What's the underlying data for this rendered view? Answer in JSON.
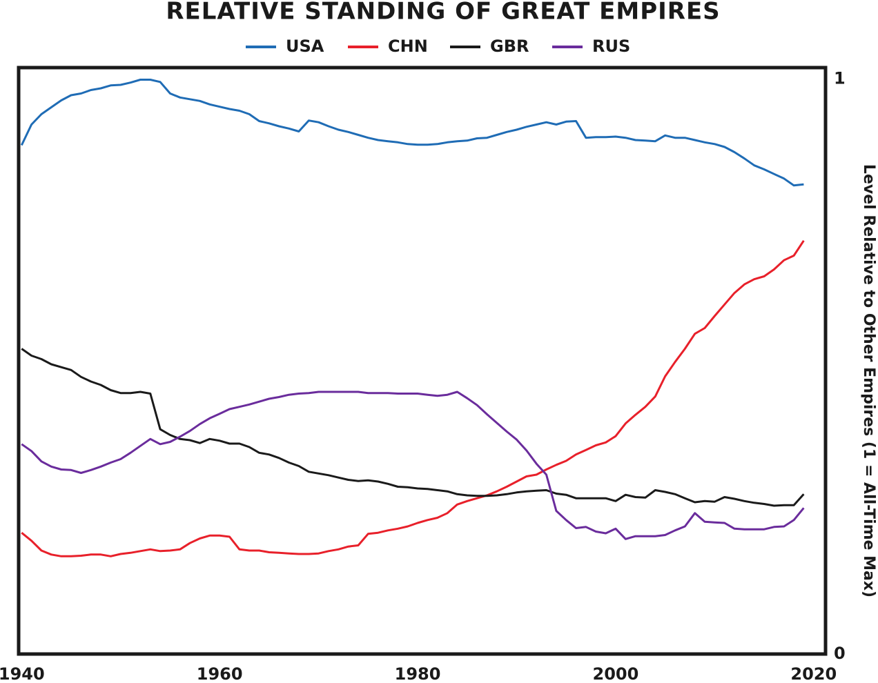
{
  "chart_data": {
    "type": "line",
    "title": "RELATIVE STANDING OF GREAT EMPIRES",
    "y_label": "Level Relative to Other Empires (1 = All-Time Max)",
    "x": [
      1940,
      1941,
      1942,
      1943,
      1944,
      1945,
      1946,
      1947,
      1948,
      1949,
      1950,
      1951,
      1952,
      1953,
      1954,
      1955,
      1956,
      1957,
      1958,
      1959,
      1960,
      1961,
      1962,
      1963,
      1964,
      1965,
      1966,
      1967,
      1968,
      1969,
      1970,
      1971,
      1972,
      1973,
      1974,
      1975,
      1976,
      1977,
      1978,
      1979,
      1980,
      1981,
      1982,
      1983,
      1984,
      1985,
      1986,
      1987,
      1988,
      1989,
      1990,
      1991,
      1992,
      1993,
      1994,
      1995,
      1996,
      1997,
      1998,
      1999,
      2000,
      2001,
      2002,
      2003,
      2004,
      2005,
      2006,
      2007,
      2008,
      2009,
      2010,
      2011,
      2012,
      2013,
      2014,
      2015,
      2016,
      2017,
      2018,
      2019
    ],
    "xlim": [
      1939.7,
      2021.2
    ],
    "xticks": [
      1940,
      1960,
      1980,
      2000,
      2020
    ],
    "ylim": [
      0,
      1.02
    ],
    "yticks": [
      0,
      1
    ],
    "y_axis_side": "right",
    "legend": "top",
    "series": [
      {
        "name": "USA",
        "color": "#1f6cb5",
        "values": [
          0.885,
          0.921,
          0.939,
          0.951,
          0.963,
          0.972,
          0.975,
          0.981,
          0.984,
          0.989,
          0.99,
          0.994,
          0.999,
          0.999,
          0.995,
          0.975,
          0.968,
          0.965,
          0.962,
          0.956,
          0.952,
          0.948,
          0.945,
          0.939,
          0.927,
          0.923,
          0.918,
          0.914,
          0.909,
          0.928,
          0.925,
          0.918,
          0.912,
          0.908,
          0.903,
          0.898,
          0.894,
          0.892,
          0.89,
          0.887,
          0.886,
          0.886,
          0.887,
          0.89,
          0.892,
          0.893,
          0.897,
          0.898,
          0.903,
          0.908,
          0.912,
          0.917,
          0.921,
          0.925,
          0.921,
          0.926,
          0.927,
          0.898,
          0.899,
          0.899,
          0.9,
          0.898,
          0.894,
          0.893,
          0.892,
          0.902,
          0.898,
          0.898,
          0.894,
          0.89,
          0.887,
          0.882,
          0.873,
          0.862,
          0.85,
          0.843,
          0.835,
          0.827,
          0.815,
          0.817
        ]
      },
      {
        "name": "CHN",
        "color": "#e8202a",
        "values": [
          0.211,
          0.197,
          0.18,
          0.173,
          0.17,
          0.17,
          0.171,
          0.173,
          0.173,
          0.17,
          0.174,
          0.176,
          0.179,
          0.182,
          0.179,
          0.18,
          0.182,
          0.193,
          0.201,
          0.206,
          0.206,
          0.204,
          0.182,
          0.18,
          0.18,
          0.177,
          0.176,
          0.175,
          0.174,
          0.174,
          0.175,
          0.179,
          0.182,
          0.187,
          0.189,
          0.209,
          0.211,
          0.215,
          0.218,
          0.222,
          0.228,
          0.233,
          0.237,
          0.245,
          0.26,
          0.266,
          0.271,
          0.276,
          0.283,
          0.291,
          0.3,
          0.309,
          0.312,
          0.321,
          0.329,
          0.336,
          0.347,
          0.355,
          0.363,
          0.368,
          0.379,
          0.401,
          0.416,
          0.43,
          0.448,
          0.483,
          0.508,
          0.531,
          0.557,
          0.567,
          0.588,
          0.608,
          0.628,
          0.643,
          0.652,
          0.657,
          0.669,
          0.685,
          0.693,
          0.719
        ]
      },
      {
        "name": "GBR",
        "color": "#1a1a1a",
        "values": [
          0.531,
          0.519,
          0.513,
          0.504,
          0.499,
          0.494,
          0.482,
          0.474,
          0.468,
          0.459,
          0.454,
          0.454,
          0.456,
          0.453,
          0.391,
          0.381,
          0.374,
          0.372,
          0.367,
          0.374,
          0.371,
          0.366,
          0.366,
          0.36,
          0.35,
          0.347,
          0.341,
          0.333,
          0.327,
          0.317,
          0.314,
          0.311,
          0.307,
          0.303,
          0.301,
          0.302,
          0.3,
          0.296,
          0.291,
          0.29,
          0.288,
          0.287,
          0.285,
          0.283,
          0.278,
          0.276,
          0.275,
          0.275,
          0.276,
          0.278,
          0.281,
          0.283,
          0.284,
          0.285,
          0.279,
          0.277,
          0.271,
          0.271,
          0.271,
          0.271,
          0.266,
          0.277,
          0.273,
          0.272,
          0.285,
          0.282,
          0.278,
          0.271,
          0.264,
          0.266,
          0.265,
          0.273,
          0.27,
          0.266,
          0.263,
          0.261,
          0.258,
          0.259,
          0.259,
          0.278
        ]
      },
      {
        "name": "RUS",
        "color": "#6a2c9c",
        "values": [
          0.365,
          0.353,
          0.335,
          0.326,
          0.321,
          0.32,
          0.315,
          0.32,
          0.326,
          0.333,
          0.339,
          0.35,
          0.362,
          0.374,
          0.365,
          0.369,
          0.378,
          0.388,
          0.4,
          0.41,
          0.418,
          0.426,
          0.43,
          0.434,
          0.439,
          0.444,
          0.447,
          0.451,
          0.453,
          0.454,
          0.456,
          0.456,
          0.456,
          0.456,
          0.456,
          0.454,
          0.454,
          0.454,
          0.453,
          0.453,
          0.453,
          0.451,
          0.449,
          0.451,
          0.456,
          0.445,
          0.433,
          0.417,
          0.402,
          0.387,
          0.373,
          0.354,
          0.331,
          0.312,
          0.249,
          0.233,
          0.219,
          0.221,
          0.213,
          0.21,
          0.218,
          0.2,
          0.205,
          0.205,
          0.205,
          0.207,
          0.215,
          0.222,
          0.245,
          0.23,
          0.229,
          0.228,
          0.218,
          0.217,
          0.217,
          0.217,
          0.221,
          0.222,
          0.233,
          0.254
        ]
      }
    ]
  }
}
